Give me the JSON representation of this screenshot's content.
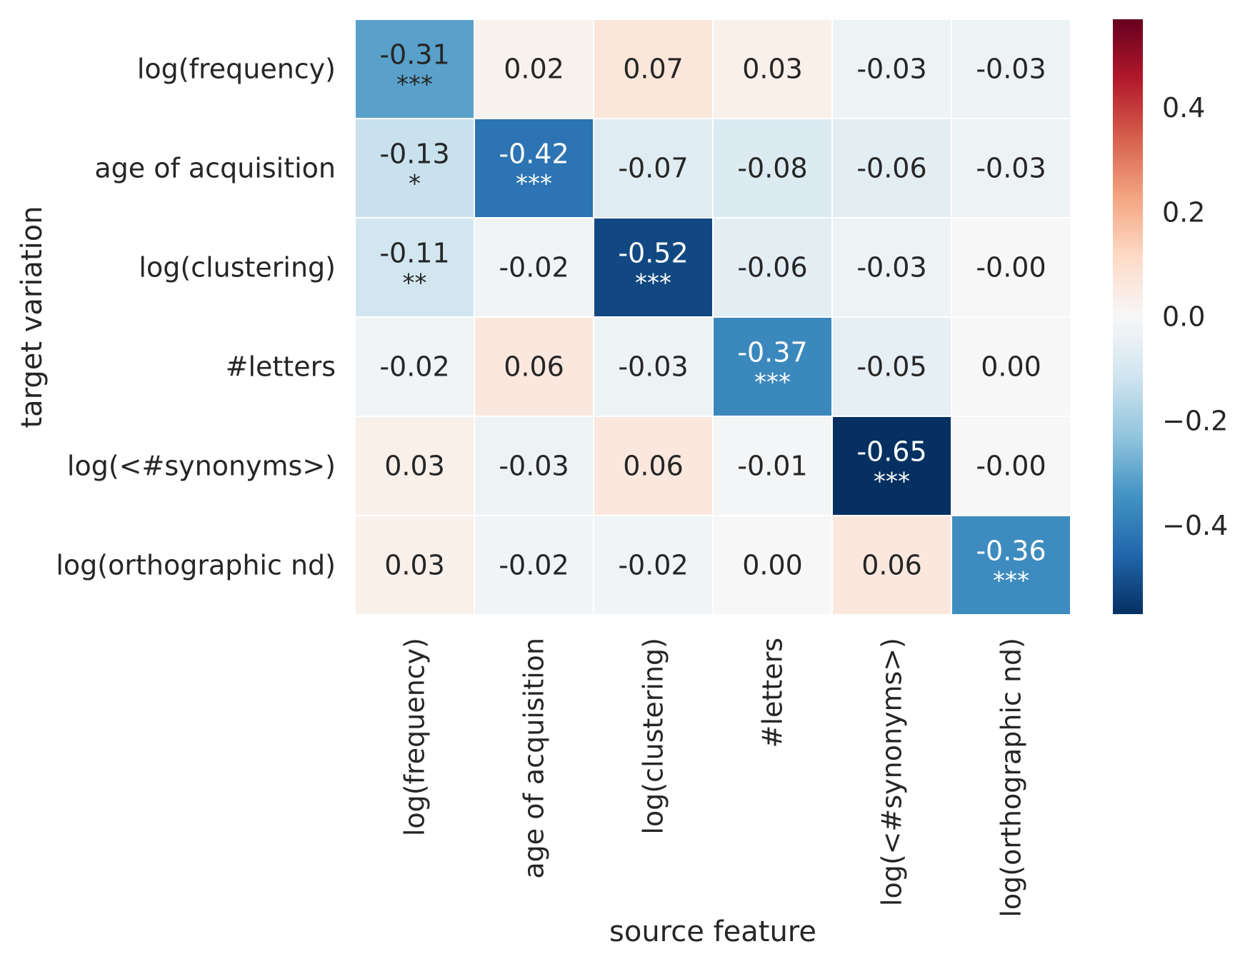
{
  "chart_data": {
    "type": "heatmap",
    "title": "",
    "xlabel": "source feature",
    "ylabel": "target variation",
    "x_categories": [
      "log(frequency)",
      "age of acquisition",
      "log(clustering)",
      "#letters",
      "log(<#synonyms>)",
      "log(orthographic nd)"
    ],
    "y_categories": [
      "log(frequency)",
      "age of acquisition",
      "log(clustering)",
      "#letters",
      "log(<#synonyms>)",
      "log(orthographic nd)"
    ],
    "values": [
      [
        -0.31,
        0.02,
        0.07,
        0.03,
        -0.03,
        -0.03
      ],
      [
        -0.13,
        -0.42,
        -0.07,
        -0.08,
        -0.06,
        -0.03
      ],
      [
        -0.11,
        -0.02,
        -0.52,
        -0.06,
        -0.03,
        -0.0
      ],
      [
        -0.02,
        0.06,
        -0.03,
        -0.37,
        -0.05,
        0.0
      ],
      [
        0.03,
        -0.03,
        0.06,
        -0.01,
        -0.65,
        -0.0
      ],
      [
        0.03,
        -0.02,
        -0.02,
        0.0,
        0.06,
        -0.36
      ]
    ],
    "cell_labels": [
      [
        "-0.31",
        "0.02",
        "0.07",
        "0.03",
        "-0.03",
        "-0.03"
      ],
      [
        "-0.13",
        "-0.42",
        "-0.07",
        "-0.08",
        "-0.06",
        "-0.03"
      ],
      [
        "-0.11",
        "-0.02",
        "-0.52",
        "-0.06",
        "-0.03",
        "-0.00"
      ],
      [
        "-0.02",
        "0.06",
        "-0.03",
        "-0.37",
        "-0.05",
        "0.00"
      ],
      [
        "0.03",
        "-0.03",
        "0.06",
        "-0.01",
        "-0.65",
        "-0.00"
      ],
      [
        "0.03",
        "-0.02",
        "-0.02",
        "0.00",
        "0.06",
        "-0.36"
      ]
    ],
    "significance": [
      [
        "***",
        "",
        "",
        "",
        "",
        ""
      ],
      [
        "*",
        "***",
        "",
        "",
        "",
        ""
      ],
      [
        "**",
        "",
        "***",
        "",
        "",
        ""
      ],
      [
        "",
        "",
        "",
        "***",
        "",
        ""
      ],
      [
        "",
        "",
        "",
        "",
        "***",
        ""
      ],
      [
        "",
        "",
        "",
        "",
        "",
        "***"
      ]
    ],
    "colormap": "RdBu_r",
    "color_range": [
      -0.57,
      0.57
    ],
    "colorbar_ticks": [
      0.4,
      0.2,
      0.0,
      -0.2,
      -0.4
    ],
    "colorbar_tick_labels": [
      "0.4",
      "0.2",
      "0.0",
      "−0.2",
      "−0.4"
    ],
    "grid": false,
    "legend": "colorbar-right"
  }
}
